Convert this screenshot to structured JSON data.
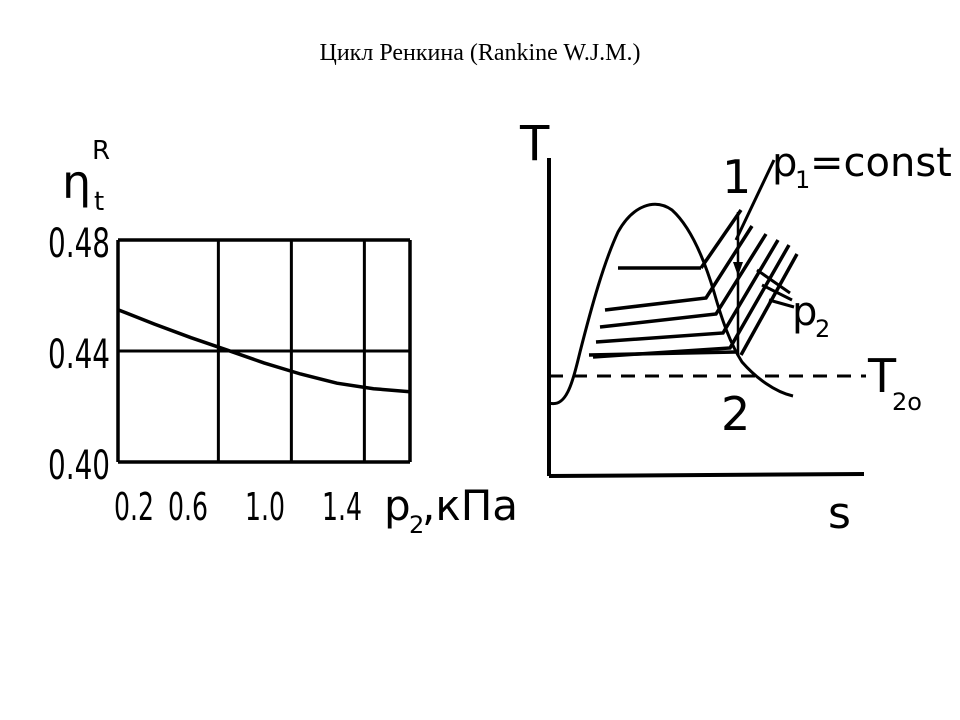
{
  "slide": {
    "title": "Цикл Ренкина (Rankine W.J.M.)"
  },
  "chart_data": [
    {
      "type": "line",
      "title": "",
      "ylabel": {
        "symbol": "η",
        "sub": "t",
        "sup": "R"
      },
      "xlabel": {
        "symbol": "p",
        "sub": "2",
        "unit": ",кПа"
      },
      "x_ticks": [
        "0.2",
        "0.6",
        "1.0",
        "1.4"
      ],
      "y_ticks": [
        "0.48",
        "0.44",
        "0.40"
      ],
      "xlim": [
        0.2,
        1.8
      ],
      "ylim": [
        0.4,
        0.48
      ],
      "grid": true,
      "series": [
        {
          "x": [
            0.2,
            0.4,
            0.6,
            0.8,
            1.0,
            1.2,
            1.4,
            1.6,
            1.8
          ],
          "y": [
            0.4549,
            0.4497,
            0.4448,
            0.4403,
            0.4357,
            0.4317,
            0.4284,
            0.4264,
            0.4253
          ]
        }
      ]
    },
    {
      "type": "line",
      "title": "",
      "xlabel": "s",
      "ylabel": "T",
      "labels": {
        "point1": "1",
        "point2": "2",
        "p1": {
          "symbol": "p",
          "sub": "1",
          "rest": "=const"
        },
        "p2": {
          "symbol": "p",
          "sub": "2"
        },
        "t2": {
          "symbol": "T",
          "sub": "2o"
        }
      }
    }
  ]
}
